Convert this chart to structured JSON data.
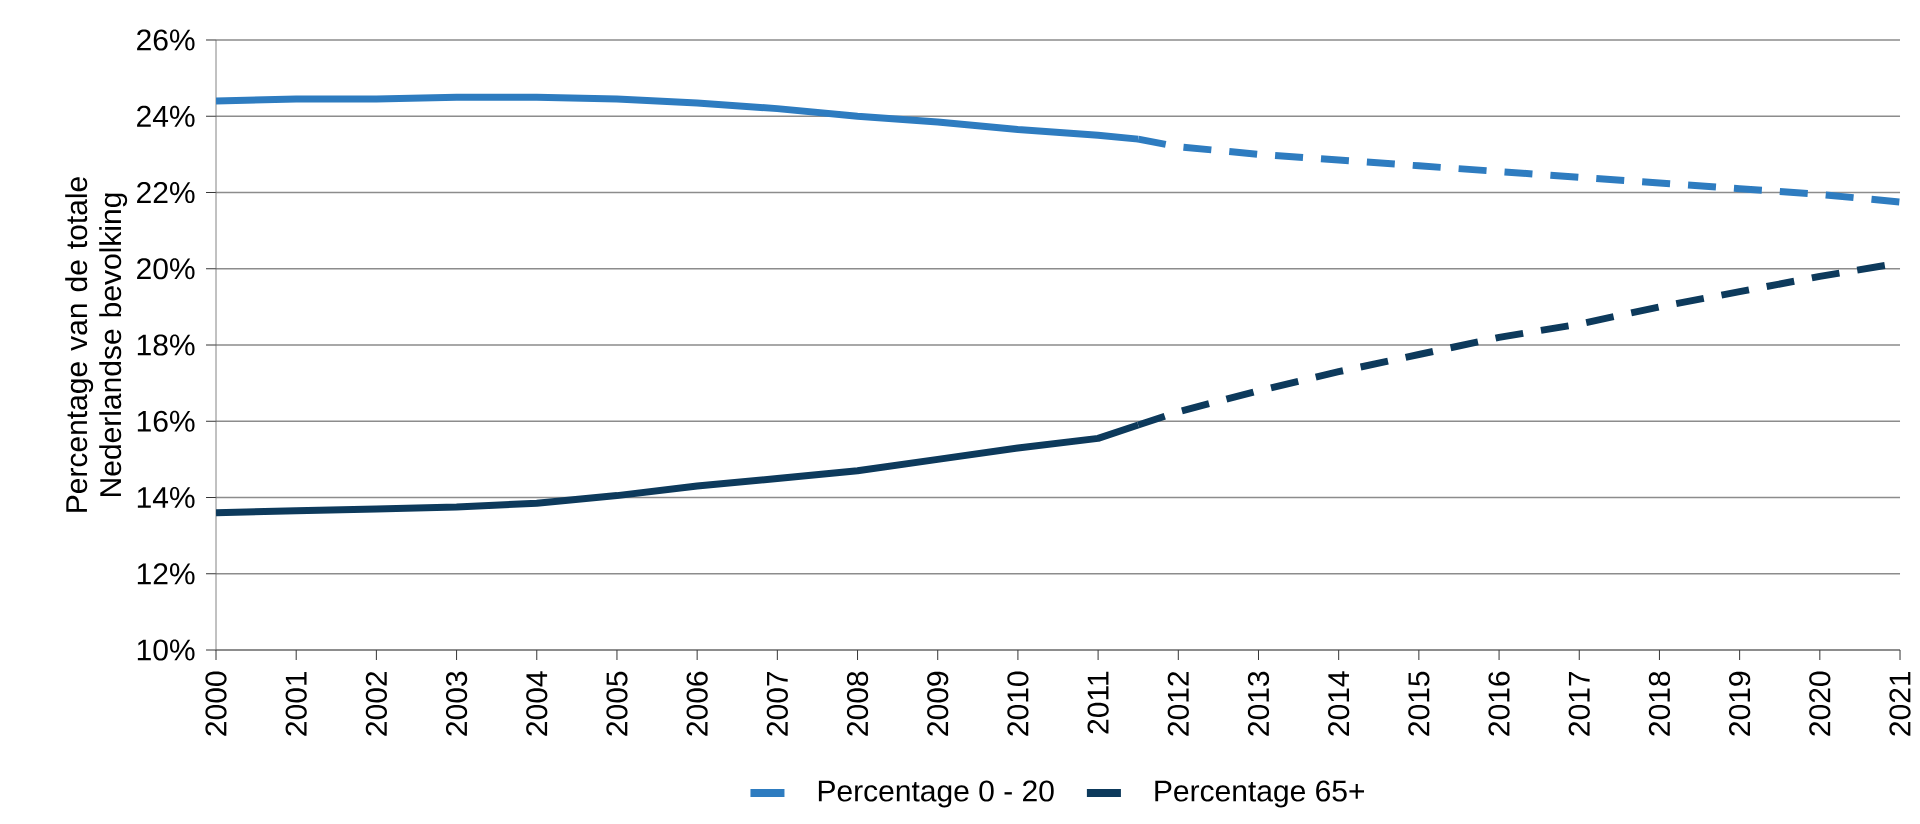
{
  "chart_data": {
    "type": "line",
    "ylabel": "Percentage van de totale Nederlandse bevolking",
    "xlim": [
      2000,
      2021
    ],
    "xticks": [
      2000,
      2001,
      2002,
      2003,
      2004,
      2005,
      2006,
      2007,
      2008,
      2009,
      2010,
      2011,
      2012,
      2013,
      2014,
      2015,
      2016,
      2017,
      2018,
      2019,
      2020,
      2021
    ],
    "ylim": [
      10,
      26
    ],
    "yticks": [
      {
        "value": 10,
        "label": "10%"
      },
      {
        "value": 12,
        "label": "12%"
      },
      {
        "value": 14,
        "label": "14%"
      },
      {
        "value": 16,
        "label": "16%"
      },
      {
        "value": 18,
        "label": "18%"
      },
      {
        "value": 20,
        "label": "20%"
      },
      {
        "value": 22,
        "label": "22%"
      },
      {
        "value": 24,
        "label": "24%"
      },
      {
        "value": 26,
        "label": "26%"
      }
    ],
    "grid": "y",
    "legend": "bottom",
    "marker": "none",
    "series": [
      {
        "name": "Percentage 0 - 20",
        "color": "#2e7cc0",
        "line_style": "solid",
        "x": [
          2000,
          2001,
          2002,
          2003,
          2004,
          2005,
          2006,
          2007,
          2008,
          2009,
          2010,
          2011,
          2011.5
        ],
        "values": [
          24.4,
          24.45,
          24.45,
          24.5,
          24.5,
          24.45,
          24.35,
          24.2,
          24.0,
          23.85,
          23.65,
          23.5,
          23.4
        ]
      },
      {
        "name": "Percentage 65+",
        "color": "#0d3a5c",
        "line_style": "solid",
        "x": [
          2000,
          2001,
          2002,
          2003,
          2004,
          2005,
          2006,
          2007,
          2008,
          2009,
          2010,
          2011,
          2011.5
        ],
        "values": [
          13.6,
          13.65,
          13.7,
          13.75,
          13.85,
          14.05,
          14.3,
          14.5,
          14.7,
          15.0,
          15.3,
          15.55,
          15.9
        ]
      },
      {
        "color": "#2e7cc0",
        "line_style": "dashed",
        "x": [
          2011.5,
          2012,
          2013,
          2014,
          2015,
          2016,
          2017,
          2018,
          2019,
          2020,
          2021
        ],
        "values": [
          23.4,
          23.2,
          23.0,
          22.85,
          22.7,
          22.55,
          22.4,
          22.25,
          22.1,
          21.95,
          21.75
        ]
      },
      {
        "color": "#0d3a5c",
        "line_style": "dashed",
        "x": [
          2011.5,
          2012,
          2013,
          2014,
          2015,
          2016,
          2017,
          2018,
          2019,
          2020,
          2021
        ],
        "values": [
          15.9,
          16.25,
          16.8,
          17.3,
          17.75,
          18.2,
          18.55,
          19.0,
          19.4,
          19.8,
          20.15
        ]
      }
    ]
  }
}
